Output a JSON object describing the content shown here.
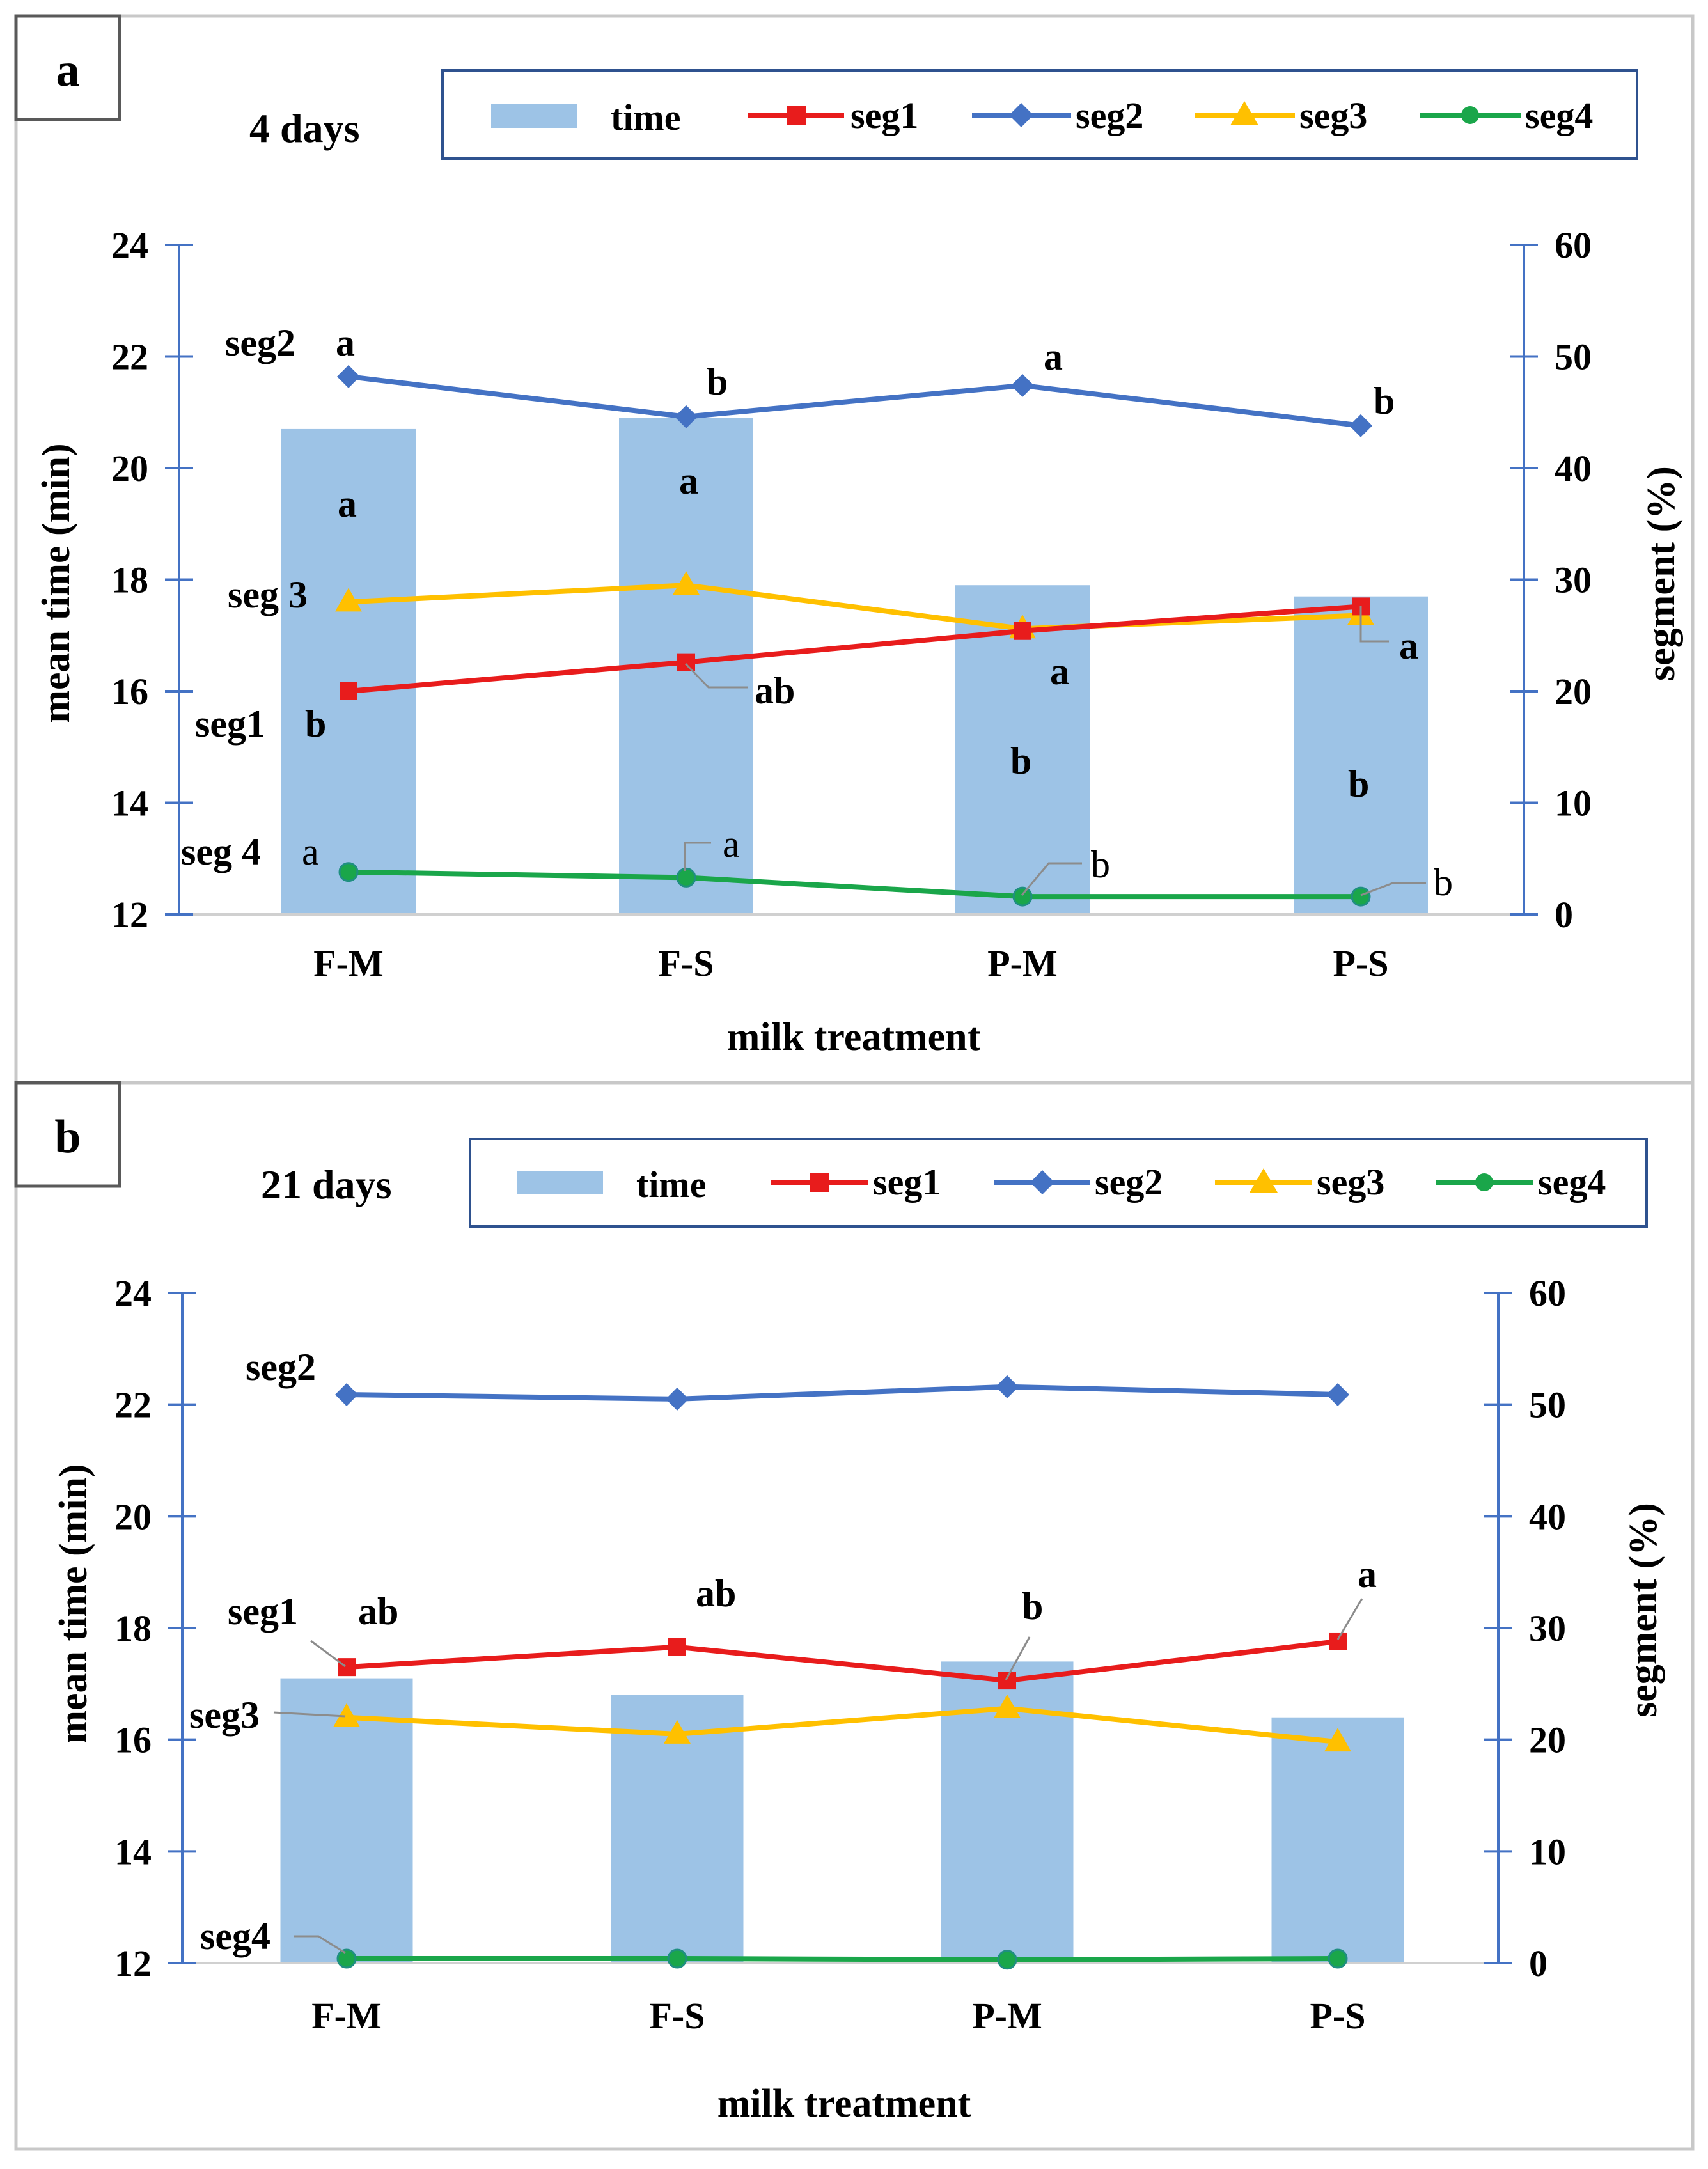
{
  "colors": {
    "time": "#9dc3e6",
    "seg1": "#e81c1c",
    "seg2": "#4472c4",
    "seg3": "#ffc000",
    "seg4": "#1aa64a",
    "axis": "#4472c4"
  },
  "chart_data": [
    {
      "panel": "a",
      "type": "bar+line",
      "title": "4 days",
      "categories": [
        "F-M",
        "F-S",
        "P-M",
        "P-S"
      ],
      "xlabel": "milk treatment",
      "ylabel": "mean time (min)",
      "ylabel_right": "segment (%)",
      "ylim": [
        12,
        24
      ],
      "ylim_right": [
        0,
        60
      ],
      "yticks": [
        "12",
        "14",
        "16",
        "18",
        "20",
        "22",
        "24"
      ],
      "yticks_right": [
        "0",
        "10",
        "20",
        "30",
        "40",
        "50",
        "60"
      ],
      "legend": [
        "time",
        "seg1",
        "seg2",
        "seg3",
        "seg4"
      ],
      "bars": {
        "name": "time",
        "values": [
          20.7,
          20.9,
          17.9,
          17.7
        ],
        "letters": [
          "a",
          "a",
          "b",
          "b"
        ]
      },
      "series": [
        {
          "name": "seg1",
          "values": [
            20.0,
            22.6,
            25.4,
            27.6
          ],
          "letters": [
            "b",
            "ab",
            "a",
            "a"
          ]
        },
        {
          "name": "seg2",
          "values": [
            48.2,
            44.6,
            47.4,
            43.8
          ],
          "letters": [
            "a",
            "b",
            "a",
            "b"
          ]
        },
        {
          "name": "seg3",
          "values": [
            28.0,
            29.5,
            25.6,
            26.8
          ]
        },
        {
          "name": "seg4",
          "values": [
            3.8,
            3.3,
            1.6,
            1.6
          ],
          "letters": [
            "a",
            "a",
            "b",
            "b"
          ]
        }
      ],
      "series_labels": [
        "seg1",
        "seg2",
        "seg 3",
        "seg 4"
      ]
    },
    {
      "panel": "b",
      "type": "bar+line",
      "title": "21 days",
      "categories": [
        "F-M",
        "F-S",
        "P-M",
        "P-S"
      ],
      "xlabel": "milk treatment",
      "ylabel": "mean time (min)",
      "ylabel_right": "segment (%)",
      "ylim": [
        12,
        24
      ],
      "ylim_right": [
        0,
        60
      ],
      "yticks": [
        "12",
        "14",
        "16",
        "18",
        "20",
        "22",
        "24"
      ],
      "yticks_right": [
        "0",
        "10",
        "20",
        "30",
        "40",
        "50",
        "60"
      ],
      "legend": [
        "time",
        "seg1",
        "seg2",
        "seg3",
        "seg4"
      ],
      "bars": {
        "name": "time",
        "values": [
          17.1,
          16.8,
          17.4,
          16.4
        ]
      },
      "series": [
        {
          "name": "seg1",
          "values": [
            26.5,
            28.3,
            25.3,
            28.8
          ],
          "letters": [
            "ab",
            "ab",
            "b",
            "a"
          ]
        },
        {
          "name": "seg2",
          "values": [
            50.9,
            50.5,
            51.6,
            50.9
          ]
        },
        {
          "name": "seg3",
          "values": [
            22.0,
            20.5,
            22.8,
            19.8
          ]
        },
        {
          "name": "seg4",
          "values": [
            0.4,
            0.4,
            0.3,
            0.4
          ]
        }
      ],
      "series_labels": [
        "seg1",
        "seg2",
        "seg3",
        "seg4"
      ]
    }
  ]
}
